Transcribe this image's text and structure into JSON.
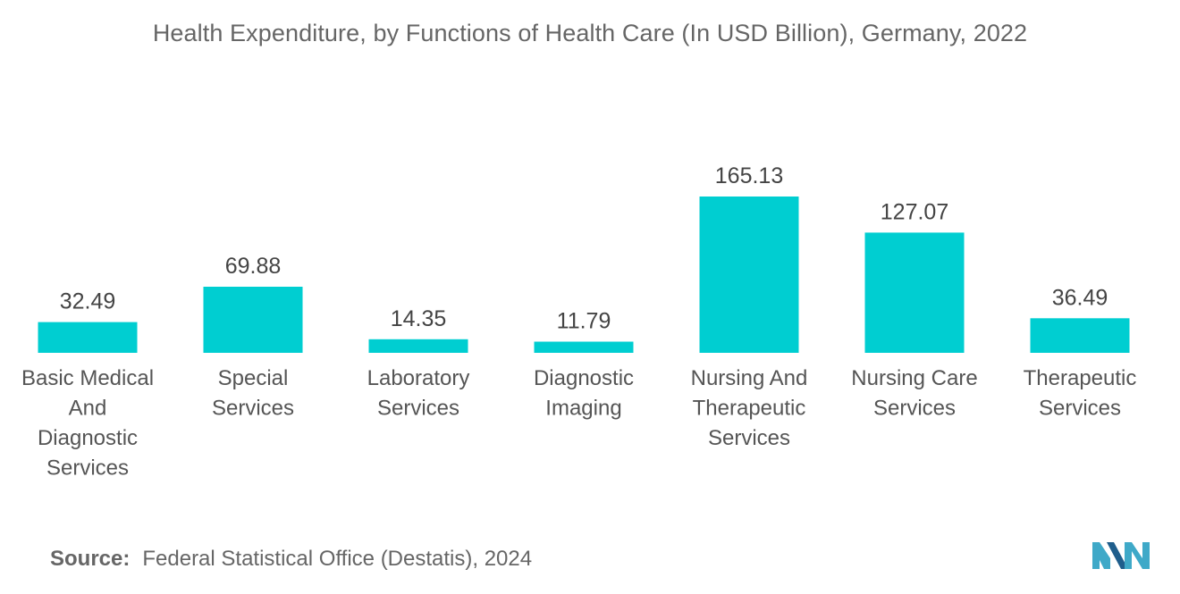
{
  "chart_data": {
    "type": "bar",
    "title": "Health Expenditure, by Functions of Health Care (In USD Billion), Germany, 2022",
    "xlabel": "",
    "ylabel": "",
    "ylim": [
      0,
      180
    ],
    "grid": false,
    "categories": [
      [
        "Basic Medical",
        "And",
        "Diagnostic",
        "Services"
      ],
      [
        "Special",
        "Services"
      ],
      [
        "Laboratory",
        "Services"
      ],
      [
        "Diagnostic",
        "Imaging"
      ],
      [
        "Nursing And",
        "Therapeutic",
        "Services"
      ],
      [
        "Nursing Care",
        "Services"
      ],
      [
        "Therapeutic",
        "Services"
      ]
    ],
    "values": [
      32.49,
      69.88,
      14.35,
      11.79,
      165.13,
      127.07,
      36.49
    ],
    "value_labels": [
      "32.49",
      "69.88",
      "14.35",
      "11.79",
      "165.13",
      "127.07",
      "36.49"
    ],
    "bar_color": "#00CED1"
  },
  "source": {
    "label": "Source:",
    "text": "Federal Statistical Office (Destatis), 2024"
  },
  "logo_colors": [
    "#3FA9C8",
    "#1F5E8C"
  ]
}
